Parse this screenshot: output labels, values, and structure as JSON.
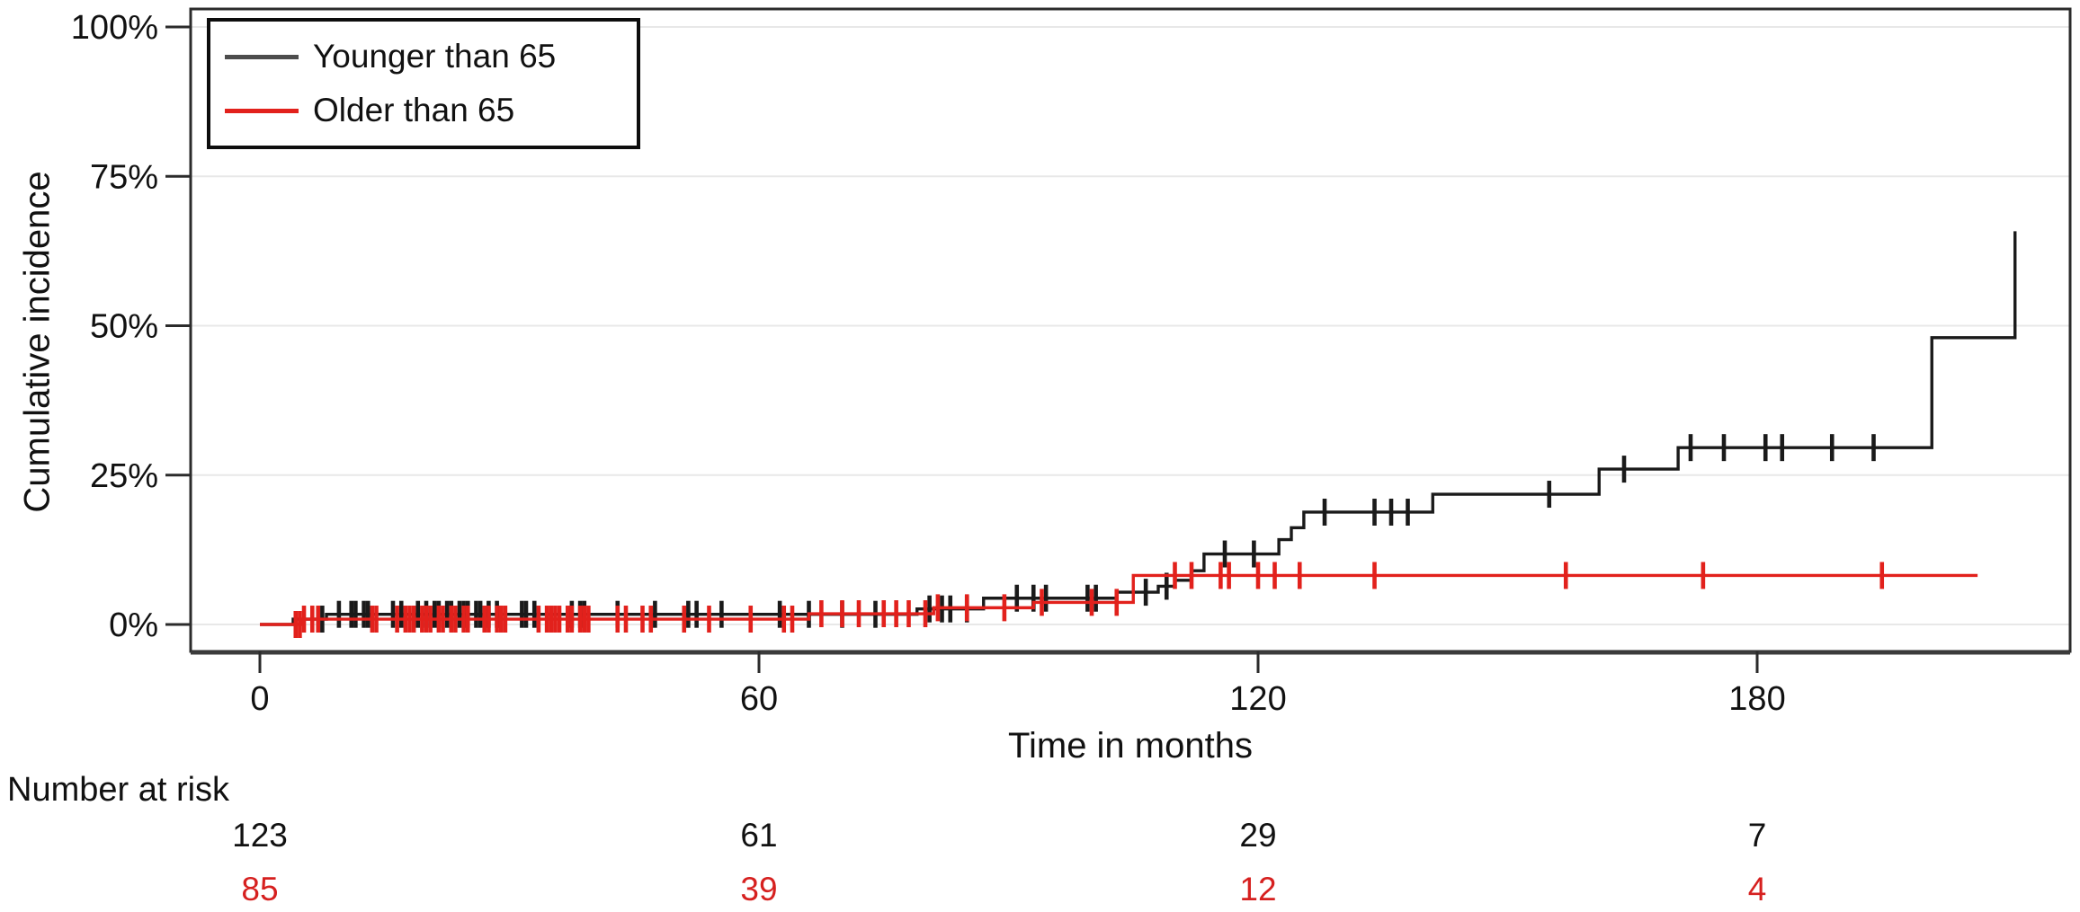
{
  "chart_data": {
    "type": "line",
    "subtype": "kaplan-meier-step",
    "title": "",
    "xlabel": "Time in months",
    "ylabel": "Cumulative incidence",
    "xlim": [
      0,
      218
    ],
    "ylim": [
      0,
      100
    ],
    "grid": true,
    "legend_position": "top-left",
    "x_ticks": [
      {
        "value": 0,
        "label": "0"
      },
      {
        "value": 60,
        "label": "60"
      },
      {
        "value": 120,
        "label": "120"
      },
      {
        "value": 180,
        "label": "180"
      }
    ],
    "y_ticks": [
      {
        "value": 0,
        "label": "0%"
      },
      {
        "value": 25,
        "label": "25%"
      },
      {
        "value": 50,
        "label": "50%"
      },
      {
        "value": 75,
        "label": "75%"
      },
      {
        "value": 100,
        "label": "100%"
      }
    ],
    "series": [
      {
        "name": "Younger than 65",
        "color": "#1a1a1a",
        "legend_color": "#4d4d4d",
        "steps": [
          [
            0,
            0
          ],
          [
            4,
            0.9
          ],
          [
            8,
            1.7
          ],
          [
            79,
            2.6
          ],
          [
            87,
            4.4
          ],
          [
            103,
            5.4
          ],
          [
            108,
            6.4
          ],
          [
            110,
            7.4
          ],
          [
            112,
            9.0
          ],
          [
            113.5,
            11.8
          ],
          [
            122.5,
            14.2
          ],
          [
            124,
            16.2
          ],
          [
            125.5,
            18.8
          ],
          [
            141,
            21.8
          ],
          [
            161,
            26.0
          ],
          [
            170.5,
            29.6
          ],
          [
            201,
            48.0
          ],
          [
            211,
            65.8
          ]
        ],
        "end_month": 211,
        "censor_months": [
          7.5,
          9.5,
          11,
          11.5,
          12.5,
          13,
          16,
          17,
          19,
          20,
          21,
          21.5,
          22.5,
          23,
          24,
          24.5,
          25,
          26,
          26.5,
          27.5,
          28.5,
          31.5,
          32,
          33,
          37.5,
          38.5,
          39,
          43,
          47.5,
          51.5,
          52.5,
          55.5,
          62.5,
          66,
          70,
          74,
          80.5,
          82,
          83,
          85,
          91,
          93,
          94.5,
          99.5,
          100.5,
          106.5,
          109,
          116,
          119.5,
          128,
          134,
          136,
          138,
          155,
          164,
          172,
          176,
          181,
          183,
          189,
          194
        ]
      },
      {
        "name": "Older than 65",
        "color": "#e2211c",
        "legend_color": "#e2211c",
        "steps": [
          [
            0,
            0
          ],
          [
            5,
            0.9
          ],
          [
            66,
            1.8
          ],
          [
            81,
            2.8
          ],
          [
            93,
            3.7
          ],
          [
            105,
            8.2
          ],
          [
            206.5,
            8.2
          ]
        ],
        "end_month": 206.5,
        "censor_months": [
          4.3,
          4.8,
          5.3,
          6.3,
          7,
          13.5,
          14,
          16.5,
          17.5,
          18,
          18.5,
          19.5,
          20,
          20.5,
          21.5,
          22,
          23,
          23.5,
          24.5,
          25,
          27,
          27.5,
          28.5,
          29,
          29.5,
          33.5,
          34.5,
          35,
          35.5,
          36,
          37,
          37.5,
          38.5,
          39,
          39.5,
          43,
          44,
          46,
          47,
          51,
          54,
          59,
          63,
          64,
          67.5,
          70,
          72,
          75,
          76.5,
          78,
          80,
          81.5,
          85,
          89.5,
          94,
          100,
          103,
          110,
          112,
          115.5,
          116.5,
          120,
          122,
          125,
          134,
          157,
          173.5,
          195
        ]
      }
    ]
  },
  "legend": {
    "items": [
      {
        "label": "Younger than 65",
        "color": "#4d4d4d"
      },
      {
        "label": "Older than 65",
        "color": "#e2211c"
      }
    ]
  },
  "axes": {
    "x_title": "Time in months",
    "y_title": "Cumulative incidence"
  },
  "risk_table": {
    "title": "Number at risk",
    "time_points": [
      0,
      60,
      120,
      180
    ],
    "rows": [
      {
        "group": "Younger than 65",
        "color": "#111111",
        "values": [
          "123",
          "61",
          "29",
          "7"
        ]
      },
      {
        "group": "Older than 65",
        "color": "#d6201f",
        "values": [
          "85",
          "39",
          "12",
          "4"
        ]
      }
    ]
  },
  "style_colors": {
    "gridline": "#e8e8e8",
    "frame": "#2b2b2b",
    "tick_text": "#111111"
  }
}
